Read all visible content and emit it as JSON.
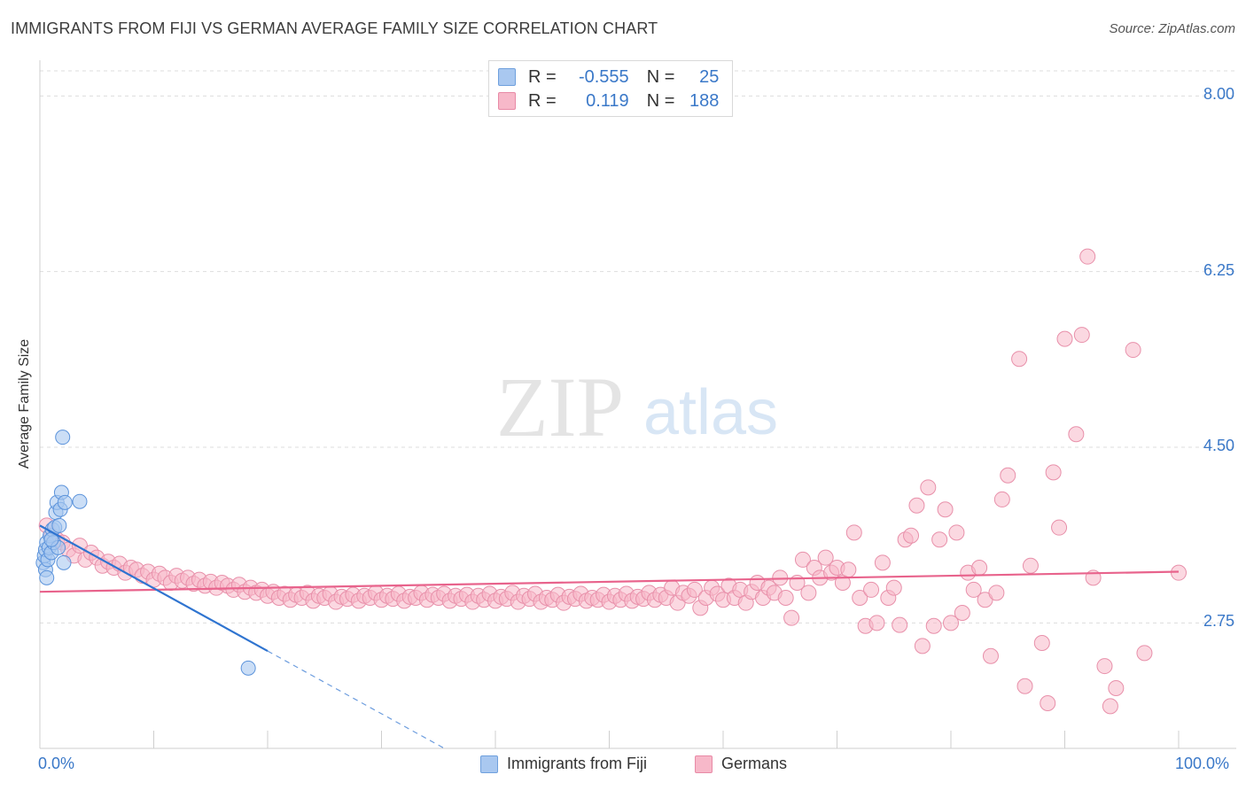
{
  "title": "IMMIGRANTS FROM FIJI VS GERMAN AVERAGE FAMILY SIZE CORRELATION CHART",
  "source": "Source: ZipAtlas.com",
  "watermark": {
    "zip": "ZIP",
    "atlas": "atlas"
  },
  "legend_top": {
    "rows": [
      {
        "r_label": "R =",
        "r_value": "-0.555",
        "n_label": "N =",
        "n_value": "25",
        "color": "#a9c8f0",
        "border": "#6fa0dd"
      },
      {
        "r_label": "R =",
        "r_value": "0.119",
        "n_label": "N =",
        "n_value": "188",
        "color": "#f7b8c9",
        "border": "#e88aa6"
      }
    ]
  },
  "legend_bottom": [
    {
      "label": "Immigrants from Fiji",
      "color": "#a9c8f0",
      "border": "#6fa0dd"
    },
    {
      "label": "Germans",
      "color": "#f7b8c9",
      "border": "#e88aa6"
    }
  ],
  "colors": {
    "fiji_fill": "#a9c8f0",
    "fiji_stroke": "#5b93db",
    "fiji_line": "#2f74d0",
    "german_fill": "#f7b8c9",
    "german_stroke": "#e890aa",
    "german_line": "#e8638c",
    "grid": "#dddddd",
    "axis_text": "#3a78c8"
  },
  "chart_data": {
    "type": "scatter",
    "title": "IMMIGRANTS FROM FIJI VS GERMAN AVERAGE FAMILY SIZE CORRELATION CHART",
    "xlabel": "",
    "ylabel": "Average Family Size",
    "xlim": [
      0,
      100
    ],
    "ylim": [
      1.5,
      8.25
    ],
    "x_tick_labels": [
      "0.0%",
      "100.0%"
    ],
    "y_ticks": [
      2.75,
      4.5,
      6.25,
      8.0
    ],
    "y_tick_labels": [
      "2.75",
      "4.50",
      "6.25",
      "8.00"
    ],
    "grid": true,
    "legend_placement": "top-center",
    "series": [
      {
        "name": "Immigrants from Fiji",
        "r": -0.555,
        "n": 25,
        "trend": {
          "x": [
            0,
            20
          ],
          "y": [
            3.72,
            2.47
          ]
        },
        "trend_dashed": {
          "x": [
            20,
            40
          ],
          "y": [
            2.47,
            1.22
          ]
        },
        "points": [
          [
            0.3,
            3.35
          ],
          [
            0.4,
            3.42
          ],
          [
            0.5,
            3.48
          ],
          [
            0.5,
            3.28
          ],
          [
            0.6,
            3.55
          ],
          [
            0.7,
            3.38
          ],
          [
            0.8,
            3.5
          ],
          [
            0.9,
            3.62
          ],
          [
            1.0,
            3.45
          ],
          [
            1.1,
            3.68
          ],
          [
            1.2,
            3.55
          ],
          [
            1.3,
            3.7
          ],
          [
            1.4,
            3.85
          ],
          [
            1.5,
            3.95
          ],
          [
            1.6,
            3.5
          ],
          [
            1.7,
            3.72
          ],
          [
            1.8,
            3.88
          ],
          [
            1.9,
            4.05
          ],
          [
            2.0,
            4.6
          ],
          [
            2.1,
            3.35
          ],
          [
            2.2,
            3.95
          ],
          [
            3.5,
            3.96
          ],
          [
            0.6,
            3.2
          ],
          [
            1.0,
            3.58
          ],
          [
            18.3,
            2.3
          ]
        ]
      },
      {
        "name": "Germans",
        "r": 0.119,
        "n": 188,
        "trend": {
          "x": [
            0,
            100
          ],
          "y": [
            3.06,
            3.26
          ]
        },
        "points": [
          [
            0.6,
            3.72
          ],
          [
            1.0,
            3.62
          ],
          [
            1.5,
            3.58
          ],
          [
            2.0,
            3.55
          ],
          [
            2.5,
            3.48
          ],
          [
            3.0,
            3.42
          ],
          [
            3.5,
            3.52
          ],
          [
            4.0,
            3.38
          ],
          [
            4.5,
            3.45
          ],
          [
            5.0,
            3.4
          ],
          [
            5.5,
            3.32
          ],
          [
            6.0,
            3.36
          ],
          [
            6.5,
            3.3
          ],
          [
            7.0,
            3.34
          ],
          [
            7.5,
            3.25
          ],
          [
            8.0,
            3.3
          ],
          [
            8.5,
            3.28
          ],
          [
            9.0,
            3.22
          ],
          [
            9.5,
            3.26
          ],
          [
            10.0,
            3.18
          ],
          [
            10.5,
            3.24
          ],
          [
            11.0,
            3.2
          ],
          [
            11.5,
            3.15
          ],
          [
            12.0,
            3.22
          ],
          [
            12.5,
            3.17
          ],
          [
            13.0,
            3.2
          ],
          [
            13.5,
            3.14
          ],
          [
            14.0,
            3.18
          ],
          [
            14.5,
            3.12
          ],
          [
            15.0,
            3.16
          ],
          [
            15.5,
            3.1
          ],
          [
            16.0,
            3.15
          ],
          [
            16.5,
            3.12
          ],
          [
            17.0,
            3.08
          ],
          [
            17.5,
            3.13
          ],
          [
            18.0,
            3.06
          ],
          [
            18.5,
            3.1
          ],
          [
            19.0,
            3.05
          ],
          [
            19.5,
            3.08
          ],
          [
            20.0,
            3.02
          ],
          [
            20.5,
            3.06
          ],
          [
            21.0,
            3.0
          ],
          [
            21.5,
            3.04
          ],
          [
            22.0,
            2.98
          ],
          [
            22.5,
            3.03
          ],
          [
            23.0,
            3.0
          ],
          [
            23.5,
            3.05
          ],
          [
            24.0,
            2.97
          ],
          [
            24.5,
            3.02
          ],
          [
            25.0,
            3.0
          ],
          [
            25.5,
            3.04
          ],
          [
            26.0,
            2.96
          ],
          [
            26.5,
            3.01
          ],
          [
            27.0,
            2.99
          ],
          [
            27.5,
            3.03
          ],
          [
            28.0,
            2.97
          ],
          [
            28.5,
            3.02
          ],
          [
            29.0,
            3.0
          ],
          [
            29.5,
            3.05
          ],
          [
            30.0,
            2.98
          ],
          [
            30.5,
            3.02
          ],
          [
            31.0,
            2.99
          ],
          [
            31.5,
            3.04
          ],
          [
            32.0,
            2.97
          ],
          [
            32.5,
            3.01
          ],
          [
            33.0,
            3.0
          ],
          [
            33.5,
            3.05
          ],
          [
            34.0,
            2.98
          ],
          [
            34.5,
            3.03
          ],
          [
            35.0,
            3.0
          ],
          [
            35.5,
            3.04
          ],
          [
            36.0,
            2.97
          ],
          [
            36.5,
            3.02
          ],
          [
            37.0,
            2.99
          ],
          [
            37.5,
            3.03
          ],
          [
            38.0,
            2.96
          ],
          [
            38.5,
            3.02
          ],
          [
            39.0,
            2.98
          ],
          [
            39.5,
            3.04
          ],
          [
            40.0,
            2.97
          ],
          [
            40.5,
            3.01
          ],
          [
            41.0,
            2.99
          ],
          [
            41.5,
            3.05
          ],
          [
            42.0,
            2.96
          ],
          [
            42.5,
            3.02
          ],
          [
            43.0,
            2.99
          ],
          [
            43.5,
            3.04
          ],
          [
            44.0,
            2.96
          ],
          [
            44.5,
            3.0
          ],
          [
            45.0,
            2.98
          ],
          [
            45.5,
            3.03
          ],
          [
            46.0,
            2.95
          ],
          [
            46.5,
            3.01
          ],
          [
            47.0,
            2.99
          ],
          [
            47.5,
            3.04
          ],
          [
            48.0,
            2.97
          ],
          [
            48.5,
            3.0
          ],
          [
            49.0,
            2.98
          ],
          [
            49.5,
            3.03
          ],
          [
            50.0,
            2.96
          ],
          [
            50.5,
            3.02
          ],
          [
            51.0,
            2.98
          ],
          [
            51.5,
            3.04
          ],
          [
            52.0,
            2.97
          ],
          [
            52.5,
            3.01
          ],
          [
            53.0,
            2.99
          ],
          [
            53.5,
            3.05
          ],
          [
            54.0,
            2.98
          ],
          [
            54.5,
            3.03
          ],
          [
            55.0,
            3.0
          ],
          [
            55.5,
            3.1
          ],
          [
            56.0,
            2.95
          ],
          [
            56.5,
            3.05
          ],
          [
            57.0,
            3.02
          ],
          [
            57.5,
            3.08
          ],
          [
            58.0,
            2.9
          ],
          [
            58.5,
            3.0
          ],
          [
            59.0,
            3.1
          ],
          [
            59.5,
            3.04
          ],
          [
            60.0,
            2.98
          ],
          [
            60.5,
            3.12
          ],
          [
            61.0,
            3.0
          ],
          [
            61.5,
            3.08
          ],
          [
            62.0,
            2.95
          ],
          [
            62.5,
            3.06
          ],
          [
            63.0,
            3.15
          ],
          [
            63.5,
            3.0
          ],
          [
            64.0,
            3.1
          ],
          [
            64.5,
            3.05
          ],
          [
            65.0,
            3.2
          ],
          [
            65.5,
            3.0
          ],
          [
            66.0,
            2.8
          ],
          [
            66.5,
            3.15
          ],
          [
            67.0,
            3.38
          ],
          [
            67.5,
            3.05
          ],
          [
            68.0,
            3.3
          ],
          [
            68.5,
            3.2
          ],
          [
            69.0,
            3.4
          ],
          [
            69.5,
            3.25
          ],
          [
            70.0,
            3.3
          ],
          [
            70.5,
            3.15
          ],
          [
            71.0,
            3.28
          ],
          [
            71.5,
            3.65
          ],
          [
            72.0,
            3.0
          ],
          [
            72.5,
            2.72
          ],
          [
            73.0,
            3.08
          ],
          [
            73.5,
            2.75
          ],
          [
            74.0,
            3.35
          ],
          [
            74.5,
            3.0
          ],
          [
            75.0,
            3.1
          ],
          [
            75.5,
            2.73
          ],
          [
            76.0,
            3.58
          ],
          [
            76.5,
            3.62
          ],
          [
            77.0,
            3.92
          ],
          [
            77.5,
            2.52
          ],
          [
            78.0,
            4.1
          ],
          [
            78.5,
            2.72
          ],
          [
            79.0,
            3.58
          ],
          [
            79.5,
            3.88
          ],
          [
            80.0,
            2.75
          ],
          [
            80.5,
            3.65
          ],
          [
            81.0,
            2.85
          ],
          [
            81.5,
            3.25
          ],
          [
            82.0,
            3.08
          ],
          [
            82.5,
            3.3
          ],
          [
            83.0,
            2.98
          ],
          [
            83.5,
            2.42
          ],
          [
            84.0,
            3.05
          ],
          [
            84.5,
            3.98
          ],
          [
            85.0,
            4.22
          ],
          [
            86.0,
            5.38
          ],
          [
            86.5,
            2.12
          ],
          [
            87.0,
            3.32
          ],
          [
            88.0,
            2.55
          ],
          [
            88.5,
            1.95
          ],
          [
            89.0,
            4.25
          ],
          [
            89.5,
            3.7
          ],
          [
            90.0,
            5.58
          ],
          [
            91.0,
            4.63
          ],
          [
            91.5,
            5.62
          ],
          [
            92.0,
            6.4
          ],
          [
            92.5,
            3.2
          ],
          [
            93.5,
            2.32
          ],
          [
            94.0,
            1.92
          ],
          [
            94.5,
            2.1
          ],
          [
            96.0,
            5.47
          ],
          [
            97.0,
            2.45
          ],
          [
            100.0,
            3.25
          ]
        ]
      }
    ]
  }
}
